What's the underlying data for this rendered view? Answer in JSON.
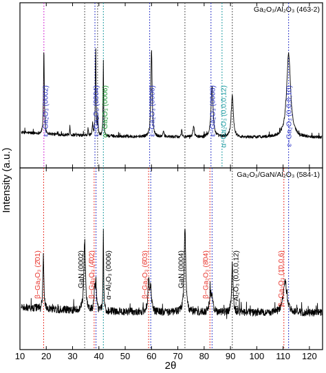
{
  "chart_data": {
    "type": "line",
    "xlabel": "2θ",
    "ylabel": "Intensity (a.u.)",
    "xlim": [
      10,
      125
    ],
    "xticks": [
      10,
      20,
      30,
      40,
      50,
      60,
      70,
      80,
      90,
      100,
      110,
      120
    ],
    "colors": {
      "red": "#e8322a",
      "blue": "#2d36c8",
      "green": "#1f9a35",
      "teal": "#1b9aa0",
      "magenta": "#d42ad4",
      "gray": "#555555"
    },
    "panels": [
      {
        "id": "top",
        "sample_label": "Ga₂O₃/Al₂O₃ (463-2)",
        "baseline": 0.2,
        "peaks": [
          {
            "x": 19.1,
            "h": 0.55,
            "w": 0.18
          },
          {
            "x": 29.0,
            "h": 0.06,
            "w": 0.12
          },
          {
            "x": 35.9,
            "h": 0.05,
            "w": 0.12
          },
          {
            "x": 37.6,
            "h": 0.08,
            "w": 0.15
          },
          {
            "x": 38.8,
            "h": 0.58,
            "w": 0.16
          },
          {
            "x": 39.6,
            "h": 0.12,
            "w": 0.14
          },
          {
            "x": 41.7,
            "h": 0.5,
            "w": 0.12
          },
          {
            "x": 60.0,
            "h": 0.58,
            "w": 0.28
          },
          {
            "x": 64.6,
            "h": 0.04,
            "w": 0.2
          },
          {
            "x": 71.5,
            "h": 0.05,
            "w": 0.18
          },
          {
            "x": 76.0,
            "h": 0.07,
            "w": 0.3
          },
          {
            "x": 83.0,
            "h": 0.34,
            "w": 0.45
          },
          {
            "x": 90.7,
            "h": 0.28,
            "w": 0.45
          },
          {
            "x": 112.1,
            "h": 0.55,
            "w": 0.9
          }
        ],
        "lines": [
          {
            "x": 19.1,
            "color": "magenta"
          },
          {
            "x": 34.6,
            "color": "gray"
          },
          {
            "x": 38.5,
            "color": "blue"
          },
          {
            "x": 39.5,
            "color": "gray"
          },
          {
            "x": 41.7,
            "color": "teal"
          },
          {
            "x": 59.3,
            "color": "blue"
          },
          {
            "x": 72.7,
            "color": "gray"
          },
          {
            "x": 82.6,
            "color": "blue"
          },
          {
            "x": 86.8,
            "color": "teal"
          },
          {
            "x": 90.7,
            "color": "gray"
          },
          {
            "x": 112.1,
            "color": "blue"
          }
        ],
        "annotations": [
          {
            "x": 19.5,
            "text": "ε−Ga₂O₃ (0002)",
            "color": "blue"
          },
          {
            "x": 38.8,
            "text": "ε−Ga₂O₃ (0004)",
            "color": "blue"
          },
          {
            "x": 42.1,
            "text": "α−Ga₂O₃ (0006)",
            "color": "green"
          },
          {
            "x": 60.0,
            "text": "ε−Ga₂O₃ (0006)",
            "color": "blue"
          },
          {
            "x": 83.0,
            "text": "ε−Ga₂O₃ (0008)",
            "color": "blue"
          },
          {
            "x": 87.2,
            "text": "α−Ga₂O₃ (0,0,0,12)",
            "color": "teal"
          },
          {
            "x": 112.1,
            "text": "ε−Ga₂O₃ (0,0,0,10)",
            "color": "blue"
          }
        ]
      },
      {
        "id": "bottom",
        "sample_label": "Ga₂O₃/GaN/Al₂O₃ (584-1)",
        "baseline": 0.22,
        "peaks": [
          {
            "x": 18.9,
            "h": 0.32,
            "w": 0.22
          },
          {
            "x": 34.6,
            "h": 0.42,
            "w": 0.35
          },
          {
            "x": 38.4,
            "h": 0.14,
            "w": 0.25
          },
          {
            "x": 38.9,
            "h": 0.15,
            "w": 0.22
          },
          {
            "x": 41.7,
            "h": 0.5,
            "w": 0.13
          },
          {
            "x": 58.9,
            "h": 0.18,
            "w": 0.35
          },
          {
            "x": 59.7,
            "h": 0.14,
            "w": 0.3
          },
          {
            "x": 72.7,
            "h": 0.52,
            "w": 0.35
          },
          {
            "x": 82.3,
            "h": 0.1,
            "w": 0.4
          },
          {
            "x": 83.0,
            "h": 0.09,
            "w": 0.4
          },
          {
            "x": 90.7,
            "h": 0.3,
            "w": 0.3
          },
          {
            "x": 110.7,
            "h": 0.2,
            "w": 0.8
          }
        ],
        "lines": [
          {
            "x": 19.0,
            "color": "red"
          },
          {
            "x": 34.6,
            "color": "gray"
          },
          {
            "x": 38.2,
            "color": "red"
          },
          {
            "x": 38.9,
            "color": "blue"
          },
          {
            "x": 41.7,
            "color": "teal"
          },
          {
            "x": 58.9,
            "color": "red"
          },
          {
            "x": 59.7,
            "color": "blue"
          },
          {
            "x": 72.7,
            "color": "gray"
          },
          {
            "x": 82.2,
            "color": "red"
          },
          {
            "x": 83.0,
            "color": "blue"
          },
          {
            "x": 90.7,
            "color": "gray"
          },
          {
            "x": 110.3,
            "color": "red"
          },
          {
            "x": 112.1,
            "color": "blue"
          }
        ],
        "annotations": [
          {
            "x": 16.5,
            "text": "β−Ga₂O₃ (2̄01)",
            "color": "red"
          },
          {
            "x": 33.0,
            "text": "GaN (0002)",
            "color": "black"
          },
          {
            "x": 37.0,
            "text": "β−Ga₂O₃ (4̄02)",
            "color": "red"
          },
          {
            "x": 43.5,
            "text": "α−Al₂O₃ (0006)",
            "color": "black"
          },
          {
            "x": 57.3,
            "text": "β−Ga₂O₃ (6̄03)",
            "color": "red"
          },
          {
            "x": 71.0,
            "text": "GaN (0004)",
            "color": "black"
          },
          {
            "x": 80.5,
            "text": "β−Ga₂O₃ (8̄04)",
            "color": "red"
          },
          {
            "x": 92.0,
            "text": "α−Al₂O₃ (0,0,0,12)",
            "color": "black"
          },
          {
            "x": 109.0,
            "text": "β−Ga₂O₃ (1̄0,0,6)",
            "color": "red"
          }
        ]
      }
    ]
  }
}
